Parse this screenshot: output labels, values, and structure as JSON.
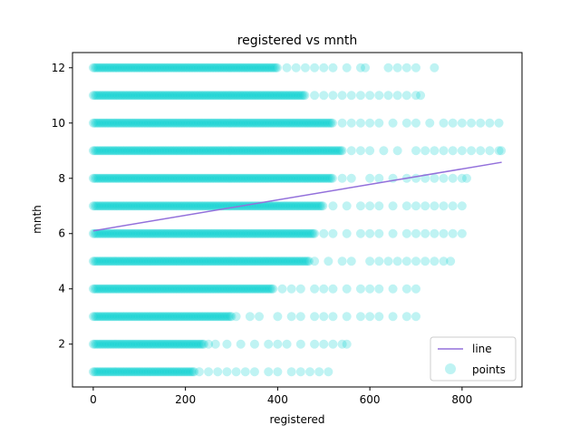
{
  "chart_data": {
    "type": "scatter",
    "title": "registered vs mnth",
    "xlabel": "registered",
    "ylabel": "mnth",
    "xlim": [
      -45,
      930
    ],
    "ylim": [
      0.45,
      12.55
    ],
    "xticks": [
      0,
      200,
      400,
      600,
      800
    ],
    "yticks": [
      2,
      4,
      6,
      8,
      10,
      12
    ],
    "grid": false,
    "legend_position": "bottom-right",
    "colors": {
      "points": "#00ced1",
      "line": "#9370db"
    },
    "series": [
      {
        "name": "points",
        "kind": "scatter",
        "alpha": 0.25,
        "months": [
          {
            "y": 1,
            "dense_max": 220,
            "tail": [
              230,
              250,
              270,
              290,
              310,
              330,
              350,
              380,
              400,
              430,
              450,
              470,
              490,
              510
            ]
          },
          {
            "y": 2,
            "dense_max": 240,
            "tail": [
              250,
              265,
              290,
              320,
              350,
              380,
              400,
              420,
              450,
              480,
              500,
              520,
              540,
              550
            ]
          },
          {
            "y": 3,
            "dense_max": 300,
            "tail": [
              310,
              340,
              360,
              400,
              430,
              450,
              480,
              500,
              520,
              550,
              580,
              600,
              620,
              650,
              680,
              700
            ]
          },
          {
            "y": 4,
            "dense_max": 390,
            "tail": [
              410,
              430,
              450,
              480,
              500,
              520,
              550,
              580,
              600,
              620,
              650,
              680,
              700
            ]
          },
          {
            "y": 5,
            "dense_max": 470,
            "tail": [
              480,
              510,
              540,
              560,
              600,
              620,
              640,
              660,
              680,
              700,
              720,
              740,
              760,
              775
            ]
          },
          {
            "y": 6,
            "dense_max": 480,
            "tail": [
              500,
              520,
              550,
              580,
              600,
              620,
              650,
              680,
              700,
              720,
              740,
              760,
              780,
              800
            ]
          },
          {
            "y": 7,
            "dense_max": 500,
            "tail": [
              520,
              550,
              580,
              600,
              620,
              650,
              680,
              700,
              720,
              740,
              760,
              780,
              800
            ]
          },
          {
            "y": 8,
            "dense_max": 520,
            "tail": [
              540,
              560,
              600,
              620,
              650,
              680,
              700,
              720,
              740,
              760,
              780,
              800,
              810
            ]
          },
          {
            "y": 9,
            "dense_max": 540,
            "tail": [
              560,
              580,
              600,
              630,
              660,
              700,
              720,
              740,
              760,
              780,
              800,
              820,
              840,
              860,
              880,
              885
            ]
          },
          {
            "y": 10,
            "dense_max": 520,
            "tail": [
              540,
              560,
              580,
              600,
              620,
              650,
              680,
              700,
              730,
              760,
              780,
              800,
              820,
              840,
              860,
              880
            ]
          },
          {
            "y": 11,
            "dense_max": 460,
            "tail": [
              480,
              500,
              520,
              540,
              560,
              580,
              600,
              620,
              640,
              660,
              680,
              700,
              710
            ]
          },
          {
            "y": 12,
            "dense_max": 400,
            "tail": [
              420,
              440,
              460,
              480,
              500,
              520,
              550,
              580,
              590,
              640,
              660,
              680,
              700,
              740
            ]
          }
        ]
      },
      {
        "name": "line",
        "kind": "line",
        "x": [
          0,
          886
        ],
        "y": [
          6.1,
          8.58
        ]
      }
    ]
  }
}
